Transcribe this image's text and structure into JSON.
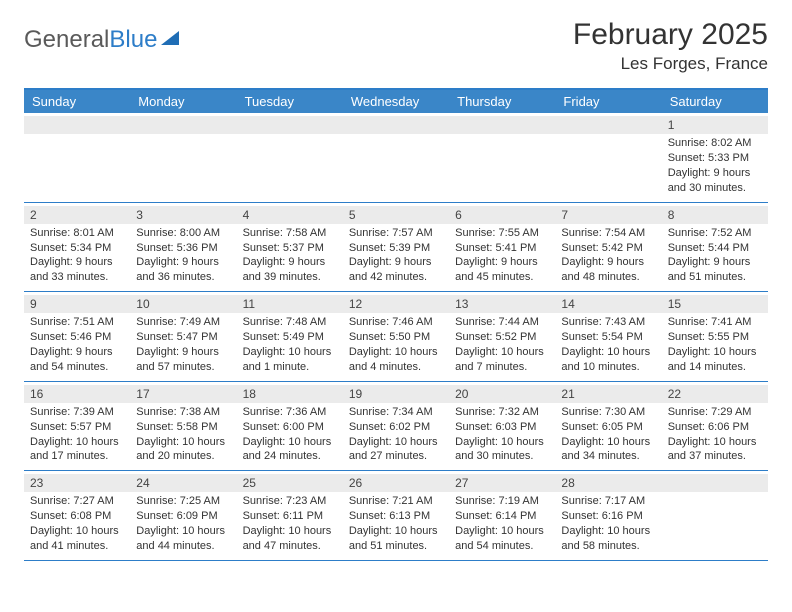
{
  "logo": {
    "part1": "General",
    "part2": "Blue"
  },
  "title": "February 2025",
  "location": "Les Forges, France",
  "colors": {
    "header_bg": "#3a86c8",
    "border": "#2d7dc8",
    "daynum_bg": "#ebebeb",
    "text": "#333333"
  },
  "day_names": [
    "Sunday",
    "Monday",
    "Tuesday",
    "Wednesday",
    "Thursday",
    "Friday",
    "Saturday"
  ],
  "weeks": [
    [
      null,
      null,
      null,
      null,
      null,
      null,
      {
        "n": "1",
        "sr": "8:02 AM",
        "ss": "5:33 PM",
        "dl": "9 hours and 30 minutes."
      }
    ],
    [
      {
        "n": "2",
        "sr": "8:01 AM",
        "ss": "5:34 PM",
        "dl": "9 hours and 33 minutes."
      },
      {
        "n": "3",
        "sr": "8:00 AM",
        "ss": "5:36 PM",
        "dl": "9 hours and 36 minutes."
      },
      {
        "n": "4",
        "sr": "7:58 AM",
        "ss": "5:37 PM",
        "dl": "9 hours and 39 minutes."
      },
      {
        "n": "5",
        "sr": "7:57 AM",
        "ss": "5:39 PM",
        "dl": "9 hours and 42 minutes."
      },
      {
        "n": "6",
        "sr": "7:55 AM",
        "ss": "5:41 PM",
        "dl": "9 hours and 45 minutes."
      },
      {
        "n": "7",
        "sr": "7:54 AM",
        "ss": "5:42 PM",
        "dl": "9 hours and 48 minutes."
      },
      {
        "n": "8",
        "sr": "7:52 AM",
        "ss": "5:44 PM",
        "dl": "9 hours and 51 minutes."
      }
    ],
    [
      {
        "n": "9",
        "sr": "7:51 AM",
        "ss": "5:46 PM",
        "dl": "9 hours and 54 minutes."
      },
      {
        "n": "10",
        "sr": "7:49 AM",
        "ss": "5:47 PM",
        "dl": "9 hours and 57 minutes."
      },
      {
        "n": "11",
        "sr": "7:48 AM",
        "ss": "5:49 PM",
        "dl": "10 hours and 1 minute."
      },
      {
        "n": "12",
        "sr": "7:46 AM",
        "ss": "5:50 PM",
        "dl": "10 hours and 4 minutes."
      },
      {
        "n": "13",
        "sr": "7:44 AM",
        "ss": "5:52 PM",
        "dl": "10 hours and 7 minutes."
      },
      {
        "n": "14",
        "sr": "7:43 AM",
        "ss": "5:54 PM",
        "dl": "10 hours and 10 minutes."
      },
      {
        "n": "15",
        "sr": "7:41 AM",
        "ss": "5:55 PM",
        "dl": "10 hours and 14 minutes."
      }
    ],
    [
      {
        "n": "16",
        "sr": "7:39 AM",
        "ss": "5:57 PM",
        "dl": "10 hours and 17 minutes."
      },
      {
        "n": "17",
        "sr": "7:38 AM",
        "ss": "5:58 PM",
        "dl": "10 hours and 20 minutes."
      },
      {
        "n": "18",
        "sr": "7:36 AM",
        "ss": "6:00 PM",
        "dl": "10 hours and 24 minutes."
      },
      {
        "n": "19",
        "sr": "7:34 AM",
        "ss": "6:02 PM",
        "dl": "10 hours and 27 minutes."
      },
      {
        "n": "20",
        "sr": "7:32 AM",
        "ss": "6:03 PM",
        "dl": "10 hours and 30 minutes."
      },
      {
        "n": "21",
        "sr": "7:30 AM",
        "ss": "6:05 PM",
        "dl": "10 hours and 34 minutes."
      },
      {
        "n": "22",
        "sr": "7:29 AM",
        "ss": "6:06 PM",
        "dl": "10 hours and 37 minutes."
      }
    ],
    [
      {
        "n": "23",
        "sr": "7:27 AM",
        "ss": "6:08 PM",
        "dl": "10 hours and 41 minutes."
      },
      {
        "n": "24",
        "sr": "7:25 AM",
        "ss": "6:09 PM",
        "dl": "10 hours and 44 minutes."
      },
      {
        "n": "25",
        "sr": "7:23 AM",
        "ss": "6:11 PM",
        "dl": "10 hours and 47 minutes."
      },
      {
        "n": "26",
        "sr": "7:21 AM",
        "ss": "6:13 PM",
        "dl": "10 hours and 51 minutes."
      },
      {
        "n": "27",
        "sr": "7:19 AM",
        "ss": "6:14 PM",
        "dl": "10 hours and 54 minutes."
      },
      {
        "n": "28",
        "sr": "7:17 AM",
        "ss": "6:16 PM",
        "dl": "10 hours and 58 minutes."
      },
      null
    ]
  ],
  "labels": {
    "sunrise": "Sunrise: ",
    "sunset": "Sunset: ",
    "daylight": "Daylight: "
  }
}
